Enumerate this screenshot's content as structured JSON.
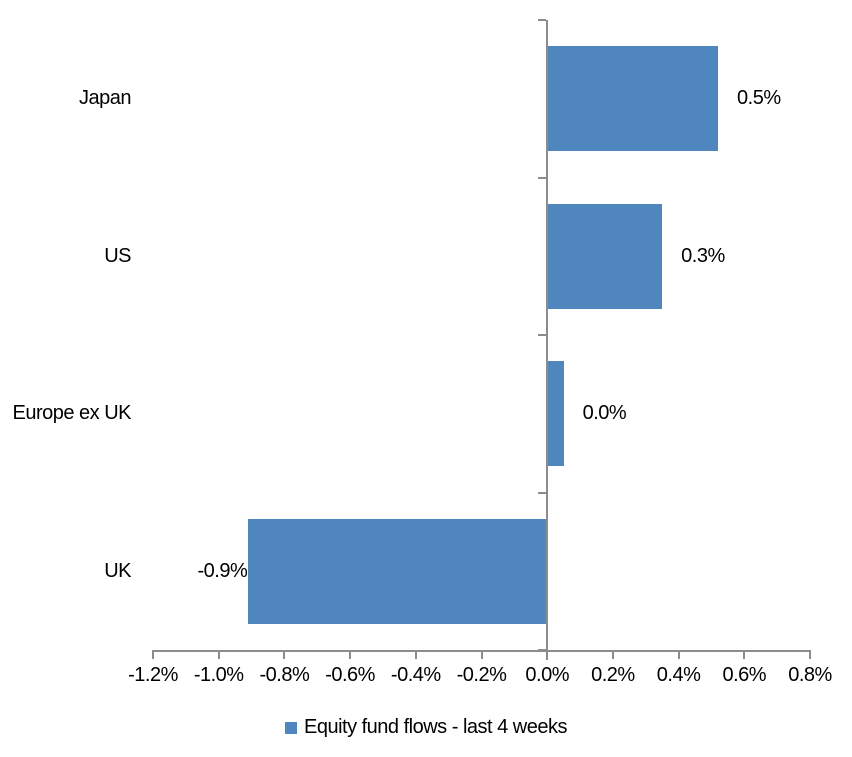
{
  "chart_data": {
    "type": "bar",
    "orientation": "horizontal",
    "title": "",
    "xlabel": "",
    "ylabel": "",
    "categories": [
      "Japan",
      "US",
      "Europe ex UK",
      "UK"
    ],
    "values": [
      0.5,
      0.3,
      0.0,
      -0.9
    ],
    "bar_values_precise": [
      0.52,
      0.35,
      0.05,
      -0.91
    ],
    "data_labels": [
      "0.5%",
      "0.3%",
      "0.0%",
      "-0.9%"
    ],
    "series_name": "Equity fund flows - last 4 weeks",
    "xlim": [
      -1.2,
      0.8
    ],
    "xticks": [
      -1.2,
      -1.0,
      -0.8,
      -0.6,
      -0.4,
      -0.2,
      0.0,
      0.2,
      0.4,
      0.6,
      0.8
    ],
    "xtick_labels": [
      "-1.2%",
      "-1.0%",
      "-0.8%",
      "-0.6%",
      "-0.4%",
      "-0.2%",
      "0.0%",
      "0.2%",
      "0.4%",
      "0.6%",
      "0.8%"
    ],
    "legend_position": "bottom",
    "grid": false,
    "background_color": "#ffffff",
    "bar_color": "#4e86bd",
    "axis_color": "#8c8c8c",
    "label_color": "#000000"
  }
}
